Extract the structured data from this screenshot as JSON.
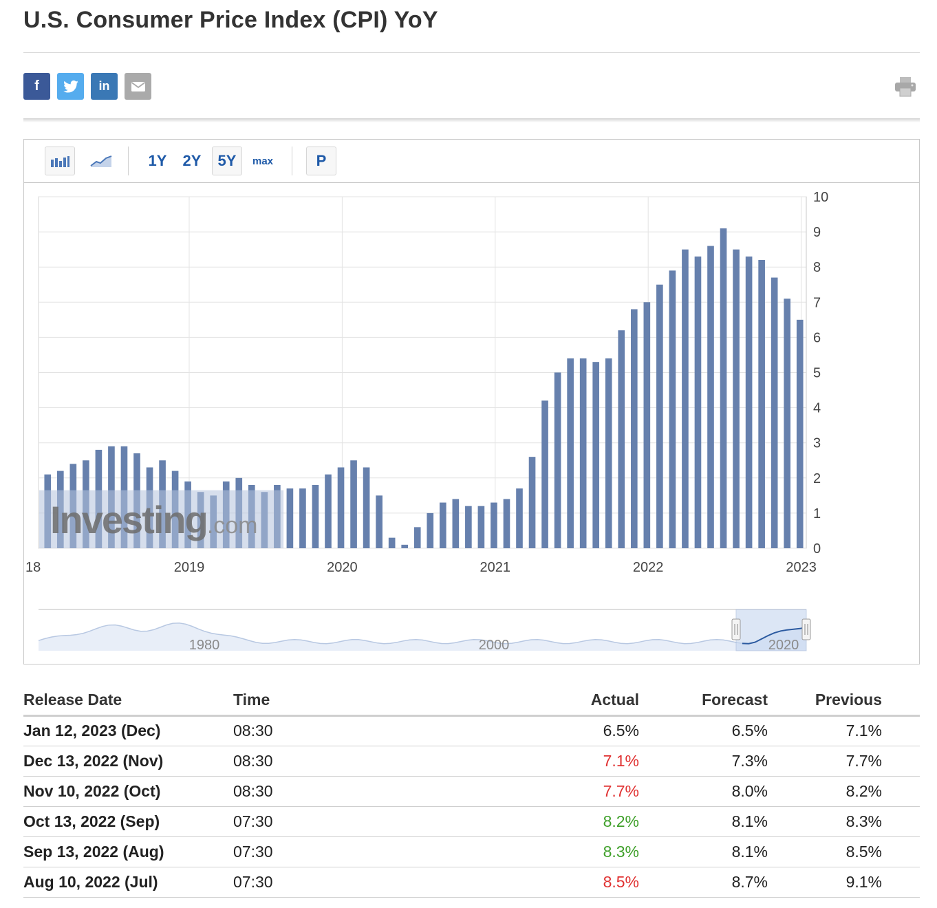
{
  "page": {
    "title": "U.S. Consumer Price Index (CPI) YoY"
  },
  "share": {
    "facebook_glyph": "f",
    "twitter_glyph": "t",
    "linkedin_glyph": "in",
    "email_icon": "envelope-icon",
    "print_icon": "printer-icon"
  },
  "toolbar": {
    "bar_icon": "bar-chart-icon",
    "line_icon": "area-chart-icon",
    "ranges": [
      "1Y",
      "2Y",
      "5Y",
      "max"
    ],
    "selected_range": "5Y",
    "p_label": "P"
  },
  "watermark": {
    "brand": "Investing",
    "suffix": ".com"
  },
  "colors": {
    "bar": "#6680ad",
    "bar_faded": "#b4c3dc",
    "negative": "#e03131",
    "positive": "#3fa02a",
    "link": "#1f5aa8"
  },
  "chart_data": {
    "type": "bar",
    "title": "U.S. Consumer Price Index (CPI) YoY",
    "xlabel": "",
    "ylabel": "",
    "ylim": [
      0,
      10
    ],
    "y_ticks": [
      0,
      1,
      2,
      3,
      4,
      5,
      6,
      7,
      8,
      9,
      10
    ],
    "x_tick_labels": [
      "18",
      "2019",
      "2020",
      "2021",
      "2022",
      "2023"
    ],
    "x_tick_positions": [
      -0.05,
      0.95,
      1.95,
      2.95,
      3.95,
      4.95
    ],
    "grid": true,
    "series": [
      {
        "name": "CPI YoY (%)",
        "values": [
          2.1,
          2.2,
          2.4,
          2.5,
          2.8,
          2.9,
          2.9,
          2.7,
          2.3,
          2.5,
          2.2,
          1.9,
          1.6,
          1.5,
          1.9,
          2.0,
          1.8,
          1.6,
          1.8,
          1.7,
          1.7,
          1.8,
          2.1,
          2.3,
          2.5,
          2.3,
          1.5,
          0.3,
          0.1,
          0.6,
          1.0,
          1.3,
          1.4,
          1.2,
          1.2,
          1.3,
          1.4,
          1.7,
          2.6,
          4.2,
          5.0,
          5.4,
          5.4,
          5.3,
          5.4,
          6.2,
          6.8,
          7.0,
          7.5,
          7.9,
          8.5,
          8.3,
          8.6,
          9.1,
          8.5,
          8.3,
          8.2,
          7.7,
          7.1,
          6.5
        ]
      }
    ],
    "navigator": {
      "tick_labels": [
        "1980",
        "2000",
        "2020"
      ]
    }
  },
  "table": {
    "headers": {
      "release_date": "Release Date",
      "time": "Time",
      "actual": "Actual",
      "forecast": "Forecast",
      "previous": "Previous"
    },
    "rows": [
      {
        "date": "Jan 12, 2023 (Dec)",
        "time": "08:30",
        "actual": "6.5%",
        "actual_tone": "neutral",
        "forecast": "6.5%",
        "previous": "7.1%"
      },
      {
        "date": "Dec 13, 2022 (Nov)",
        "time": "08:30",
        "actual": "7.1%",
        "actual_tone": "negative",
        "forecast": "7.3%",
        "previous": "7.7%"
      },
      {
        "date": "Nov 10, 2022 (Oct)",
        "time": "08:30",
        "actual": "7.7%",
        "actual_tone": "negative",
        "forecast": "8.0%",
        "previous": "8.2%"
      },
      {
        "date": "Oct 13, 2022 (Sep)",
        "time": "07:30",
        "actual": "8.2%",
        "actual_tone": "positive",
        "forecast": "8.1%",
        "previous": "8.3%"
      },
      {
        "date": "Sep 13, 2022 (Aug)",
        "time": "07:30",
        "actual": "8.3%",
        "actual_tone": "positive",
        "forecast": "8.1%",
        "previous": "8.5%"
      },
      {
        "date": "Aug 10, 2022 (Jul)",
        "time": "07:30",
        "actual": "8.5%",
        "actual_tone": "negative",
        "forecast": "8.7%",
        "previous": "9.1%"
      }
    ]
  }
}
